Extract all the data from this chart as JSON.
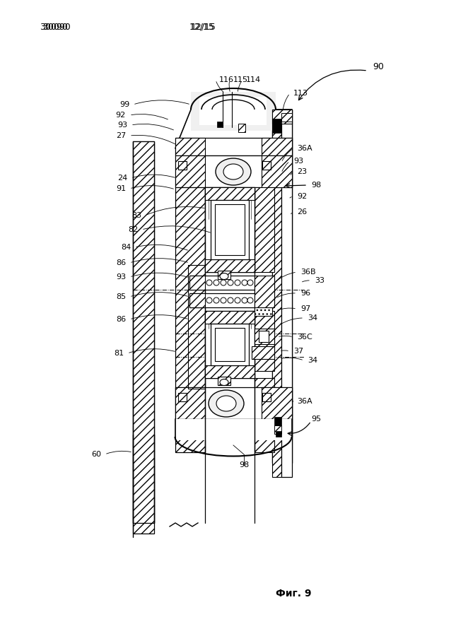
{
  "page_number": "30090",
  "page_fraction": "12/15",
  "figure_label": "Фиг. 9",
  "bg": "#ffffff"
}
